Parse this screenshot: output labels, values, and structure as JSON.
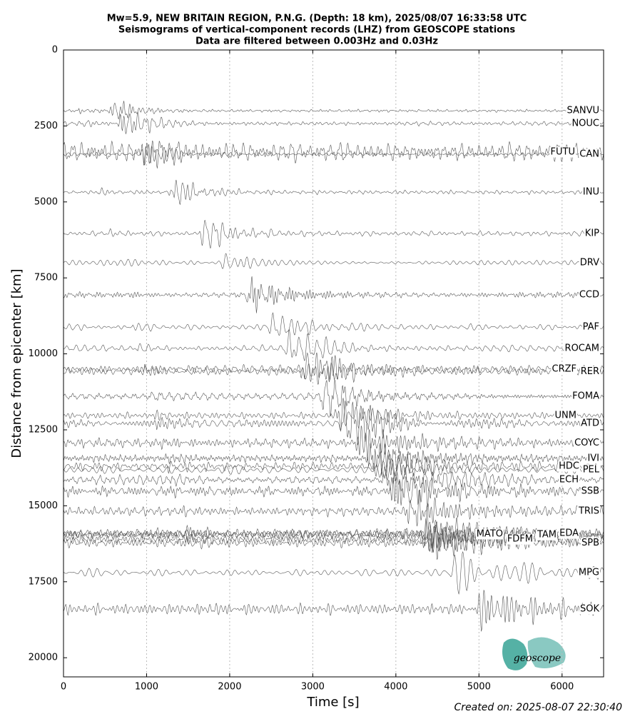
{
  "chart_data": {
    "type": "seismogram",
    "title": "Mw=5.9, NEW BRITAIN REGION, P.N.G. (Depth: 18 km), 2025/08/07 16:33:58 UTC",
    "subtitle": "Seismograms of vertical-component records (LHZ) from GEOSCOPE stations",
    "subtitle2": "Data are filtered between 0.003Hz and 0.03Hz",
    "xlabel": "Time [s]",
    "ylabel": "Distance from epicenter [km]",
    "xlim": [
      0,
      6500
    ],
    "ylim": [
      20630,
      0
    ],
    "xticks": [
      0,
      1000,
      2000,
      3000,
      4000,
      5000,
      6000
    ],
    "yticks": [
      0,
      2500,
      5000,
      7500,
      10000,
      12500,
      15000,
      17500,
      20000
    ],
    "grid": true,
    "color": "#555555",
    "stations": [
      {
        "name": "SANVU",
        "distance": 2000
      },
      {
        "name": "NOUC",
        "distance": 2420
      },
      {
        "name": "FUTU",
        "distance": 3360
      },
      {
        "name": "CAN",
        "distance": 3430
      },
      {
        "name": "INU",
        "distance": 4680
      },
      {
        "name": "KIP",
        "distance": 6040
      },
      {
        "name": "DRV",
        "distance": 7000
      },
      {
        "name": "CCD",
        "distance": 8060
      },
      {
        "name": "PAF",
        "distance": 9120
      },
      {
        "name": "ROCAM",
        "distance": 9820
      },
      {
        "name": "CRZF",
        "distance": 10500
      },
      {
        "name": "RER",
        "distance": 10580
      },
      {
        "name": "FOMA",
        "distance": 11400
      },
      {
        "name": "UNM",
        "distance": 12030
      },
      {
        "name": "ATD",
        "distance": 12290
      },
      {
        "name": "COYC",
        "distance": 12930
      },
      {
        "name": "IVI",
        "distance": 13440
      },
      {
        "name": "HDC",
        "distance": 13700
      },
      {
        "name": "PEL",
        "distance": 13820
      },
      {
        "name": "ECH",
        "distance": 14150
      },
      {
        "name": "SSB",
        "distance": 14520
      },
      {
        "name": "TRIS",
        "distance": 15180
      },
      {
        "name": "MATO",
        "distance": 15930
      },
      {
        "name": "FDFM",
        "distance": 16100
      },
      {
        "name": "TAM",
        "distance": 15960
      },
      {
        "name": "EDA",
        "distance": 15910
      },
      {
        "name": "SPB",
        "distance": 16220
      },
      {
        "name": "MPG",
        "distance": 17200
      },
      {
        "name": "SOK",
        "distance": 18400
      }
    ],
    "created": "Created on: 2025-08-07 22:30:40",
    "logo_text": "geoscope"
  }
}
